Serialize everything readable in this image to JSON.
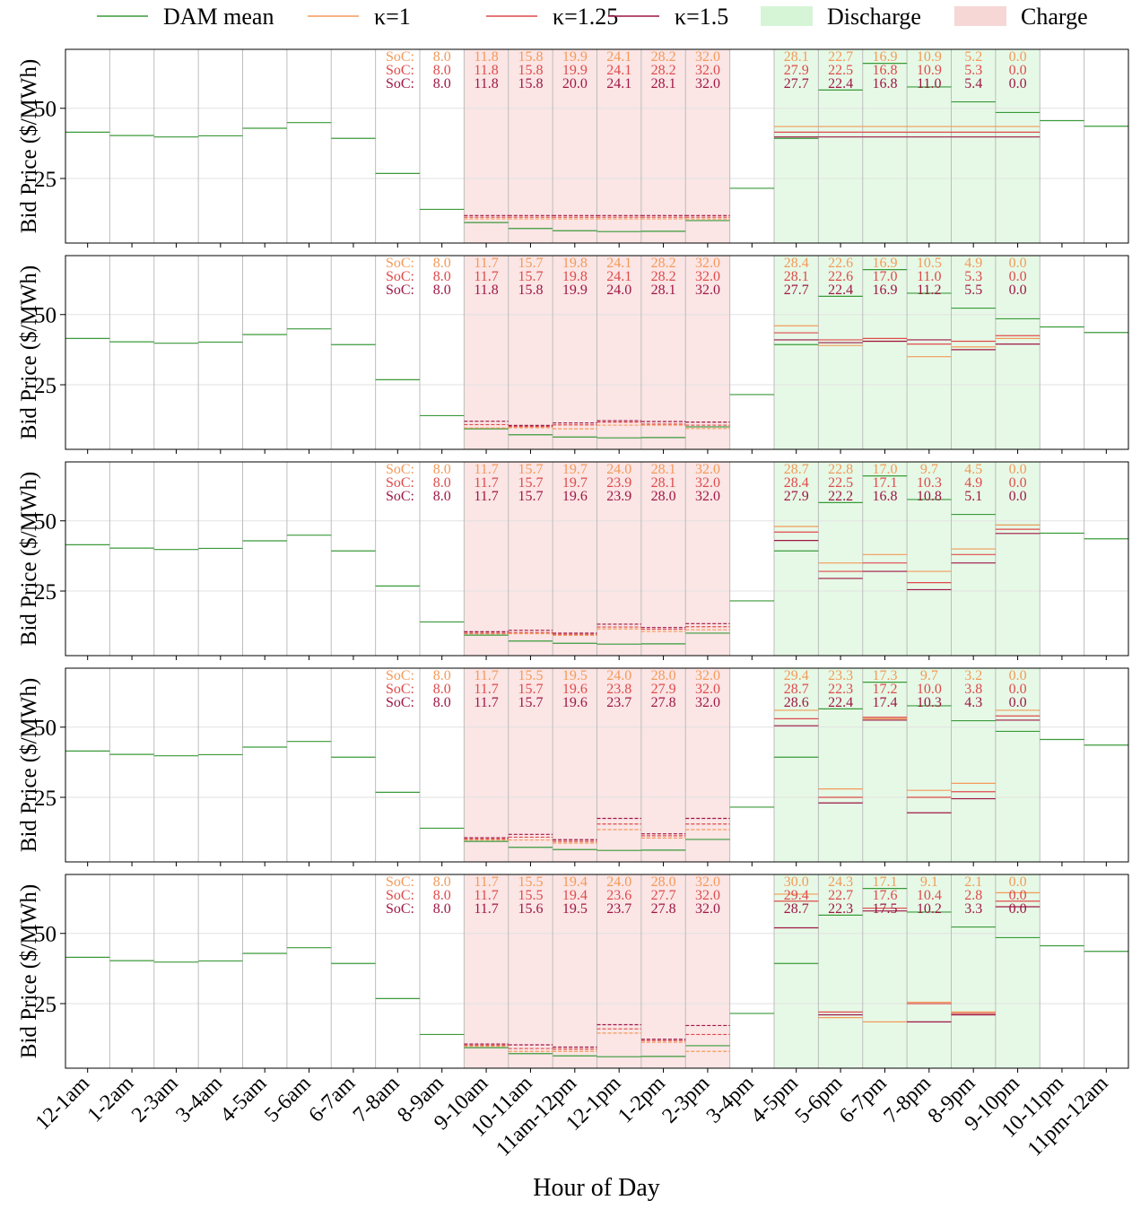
{
  "legend": {
    "items": [
      {
        "label": "DAM mean",
        "kind": "line",
        "color": "#3a9a3a"
      },
      {
        "label": "κ=1",
        "kind": "line",
        "color": "#f39a5a"
      },
      {
        "label": "κ=1.25",
        "kind": "line",
        "color": "#df4a4a"
      },
      {
        "label": "κ=1.5",
        "kind": "line",
        "color": "#9e1745"
      },
      {
        "label": "Discharge",
        "kind": "patch",
        "color": "#d6f5d6"
      },
      {
        "label": "Charge",
        "kind": "patch",
        "color": "#f7d6d6"
      }
    ]
  },
  "colors": {
    "dam": "#3a9a3a",
    "k1": "#f39a5a",
    "k125": "#df4a4a",
    "k15": "#9e1745",
    "discharge": "#e6f9e6",
    "charge": "#fbe5e5",
    "vline": "#bdbdbd",
    "grid": "#e2e2e2"
  },
  "xlabel": "Hour of Day",
  "ylabel": "Bid Price ($/MWh)",
  "x_categories": [
    "12-1am",
    "1-2am",
    "2-3am",
    "3-4am",
    "4-5am",
    "5-6am",
    "6-7am",
    "7-8am",
    "8-9am",
    "9-10am",
    "10-11am",
    "11am-12pm",
    "12-1pm",
    "1-2pm",
    "2-3pm",
    "3-4pm",
    "4-5pm",
    "5-6pm",
    "6-7pm",
    "7-8pm",
    "8-9pm",
    "9-10pm",
    "10-11pm",
    "11pm-12am"
  ],
  "y_ticks": [
    "25",
    "50"
  ],
  "soc_prefix": "SoC:",
  "soc_hours": [
    8,
    9,
    10,
    11,
    12,
    13,
    14,
    16,
    17,
    18,
    19,
    20,
    21
  ],
  "chart_data": {
    "type": "line",
    "ylim": [
      2,
      71
    ],
    "y_ticks": [
      25,
      50
    ],
    "grid": true,
    "charge_hours": [
      9,
      10,
      11,
      12,
      13,
      14
    ],
    "discharge_hours": [
      16,
      17,
      18,
      19,
      20,
      21
    ],
    "dam_mean": [
      41.5,
      40.3,
      39.8,
      40.2,
      42.9,
      44.9,
      39.3,
      26.8,
      14.0,
      9.3,
      7.2,
      6.4,
      6.1,
      6.2,
      10.0,
      21.5,
      39.3,
      56.5,
      66.0,
      57.6,
      52.3,
      48.5,
      45.6,
      43.6
    ],
    "panels": [
      {
        "soc": {
          "k1": [
            "8.0",
            "11.8",
            "15.8",
            "19.9",
            "24.1",
            "28.2",
            "32.0",
            "28.1",
            "22.7",
            "16.9",
            "10.9",
            "5.2",
            "0.0"
          ],
          "k125": [
            "8.0",
            "11.8",
            "15.8",
            "19.9",
            "24.1",
            "28.2",
            "32.0",
            "27.9",
            "22.5",
            "16.8",
            "10.9",
            "5.3",
            "0.0"
          ],
          "k15": [
            "8.0",
            "11.8",
            "15.8",
            "20.0",
            "24.1",
            "28.1",
            "32.0",
            "27.7",
            "22.4",
            "16.8",
            "11.0",
            "5.4",
            "0.0"
          ]
        },
        "charge_bids": {
          "k1": [
            10.6,
            10.6,
            10.6,
            10.6,
            10.6,
            10.6
          ],
          "k125": [
            11.2,
            11.2,
            11.2,
            11.2,
            11.2,
            11.2
          ],
          "k15": [
            11.8,
            11.8,
            11.8,
            11.8,
            11.8,
            11.8
          ]
        },
        "discharge_bids": {
          "k1": [
            43.5,
            43.5,
            43.5,
            43.5,
            43.5,
            43.5
          ],
          "k125": [
            41.5,
            41.5,
            41.5,
            41.5,
            41.5,
            41.5
          ],
          "k15": [
            39.8,
            39.8,
            39.8,
            39.8,
            39.8,
            39.8
          ]
        }
      },
      {
        "soc": {
          "k1": [
            "8.0",
            "11.7",
            "15.7",
            "19.8",
            "24.1",
            "28.2",
            "32.0",
            "28.4",
            "22.6",
            "16.9",
            "10.5",
            "4.9",
            "0.0"
          ],
          "k125": [
            "8.0",
            "11.7",
            "15.7",
            "19.8",
            "24.1",
            "28.2",
            "32.0",
            "28.1",
            "22.6",
            "17.0",
            "11.0",
            "5.3",
            "0.0"
          ],
          "k15": [
            "8.0",
            "11.8",
            "15.8",
            "19.9",
            "24.0",
            "28.1",
            "32.0",
            "27.7",
            "22.4",
            "16.9",
            "11.2",
            "5.5",
            "0.0"
          ]
        },
        "charge_bids": {
          "k1": [
            9.6,
            9.7,
            9.3,
            10.6,
            10.6,
            9.4
          ],
          "k125": [
            10.8,
            10.1,
            10.7,
            11.7,
            11.0,
            10.6
          ],
          "k15": [
            12.0,
            10.5,
            11.4,
            12.2,
            11.9,
            11.7
          ]
        },
        "discharge_bids": {
          "k1": [
            46.0,
            39.0,
            40.5,
            35.0,
            38.5,
            41.5
          ],
          "k125": [
            43.5,
            41.0,
            41.5,
            39.5,
            40.5,
            42.5
          ],
          "k15": [
            41.0,
            40.0,
            40.5,
            41.0,
            37.5,
            39.5
          ]
        }
      },
      {
        "soc": {
          "k1": [
            "8.0",
            "11.7",
            "15.7",
            "19.7",
            "24.0",
            "28.1",
            "32.0",
            "28.7",
            "22.8",
            "17.0",
            "9.7",
            "4.5",
            "0.0"
          ],
          "k125": [
            "8.0",
            "11.7",
            "15.7",
            "19.7",
            "23.9",
            "28.1",
            "32.0",
            "28.4",
            "22.5",
            "17.1",
            "10.3",
            "4.9",
            "0.0"
          ],
          "k15": [
            "8.0",
            "11.7",
            "15.7",
            "19.6",
            "23.9",
            "28.0",
            "32.0",
            "27.9",
            "22.2",
            "16.8",
            "10.8",
            "5.1",
            "0.0"
          ]
        },
        "charge_bids": {
          "k1": [
            9.8,
            9.8,
            9.2,
            11.5,
            10.6,
            11.2
          ],
          "k125": [
            10.0,
            10.2,
            9.6,
            12.2,
            11.4,
            12.3
          ],
          "k15": [
            10.5,
            11.0,
            10.0,
            13.2,
            12.0,
            13.4
          ]
        },
        "discharge_bids": {
          "k1": [
            48.0,
            35.0,
            38.0,
            32.0,
            40.0,
            48.5
          ],
          "k125": [
            46.0,
            32.0,
            35.0,
            28.0,
            38.0,
            47.0
          ],
          "k15": [
            43.0,
            29.5,
            32.0,
            25.5,
            35.0,
            45.5
          ]
        }
      },
      {
        "soc": {
          "k1": [
            "8.0",
            "11.7",
            "15.5",
            "19.5",
            "24.0",
            "28.0",
            "32.0",
            "29.4",
            "23.3",
            "17.3",
            "9.7",
            "3.2",
            "0.0"
          ],
          "k125": [
            "8.0",
            "11.7",
            "15.7",
            "19.6",
            "23.8",
            "27.9",
            "32.0",
            "28.7",
            "22.3",
            "17.2",
            "10.0",
            "3.8",
            "0.0"
          ],
          "k15": [
            "8.0",
            "11.7",
            "15.7",
            "19.6",
            "23.7",
            "27.8",
            "32.0",
            "28.6",
            "22.4",
            "17.4",
            "10.3",
            "4.3",
            "0.0"
          ]
        },
        "charge_bids": {
          "k1": [
            9.8,
            9.8,
            8.7,
            13.5,
            10.5,
            13.5
          ],
          "k125": [
            10.2,
            10.8,
            9.3,
            15.5,
            11.3,
            15.5
          ],
          "k15": [
            10.6,
            11.8,
            9.9,
            17.5,
            12.0,
            17.5
          ]
        },
        "discharge_bids": {
          "k1": [
            56.0,
            28.0,
            53.0,
            27.5,
            30.0,
            56.0
          ],
          "k125": [
            53.0,
            25.0,
            53.5,
            25.0,
            27.0,
            54.0
          ],
          "k15": [
            50.5,
            23.0,
            52.5,
            19.5,
            24.5,
            52.5
          ]
        }
      },
      {
        "soc": {
          "k1": [
            "8.0",
            "11.7",
            "15.5",
            "19.4",
            "24.0",
            "28.0",
            "32.0",
            "30.0",
            "24.3",
            "17.1",
            "9.1",
            "2.1",
            "0.0"
          ],
          "k125": [
            "8.0",
            "11.7",
            "15.5",
            "19.4",
            "23.6",
            "27.7",
            "32.0",
            "29.4",
            "22.7",
            "17.6",
            "10.4",
            "2.8",
            "0.0"
          ],
          "k15": [
            "8.0",
            "11.7",
            "15.6",
            "19.5",
            "23.7",
            "27.8",
            "32.0",
            "28.7",
            "22.3",
            "17.5",
            "10.2",
            "3.3",
            "0.0"
          ]
        },
        "charge_bids": {
          "k1": [
            9.8,
            8.0,
            8.0,
            14.5,
            11.2,
            8.0
          ],
          "k125": [
            10.2,
            9.0,
            8.8,
            16.0,
            11.8,
            14.0
          ],
          "k15": [
            10.6,
            10.3,
            9.5,
            17.5,
            12.3,
            17.2
          ]
        },
        "discharge_bids": {
          "k1": [
            64.0,
            20.0,
            18.5,
            25.5,
            22.0,
            64.5
          ],
          "k125": [
            61.5,
            22.0,
            59.0,
            25.0,
            21.5,
            61.5
          ],
          "k15": [
            52.0,
            21.0,
            58.0,
            18.5,
            21.0,
            59.5
          ]
        }
      }
    ]
  }
}
